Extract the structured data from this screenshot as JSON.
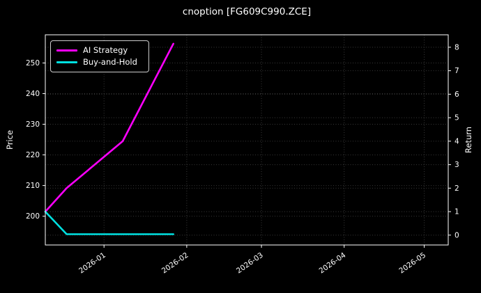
{
  "chart_data": {
    "type": "line",
    "title": "cnoption [FG609C990.ZCE]",
    "theme": {
      "background": "#000000",
      "text": "#ffffff",
      "spine": "#ffffff",
      "grid": "#3a3a3a"
    },
    "x_axis": {
      "tick_labels": [
        "2026-01",
        "2026-02",
        "2026-03",
        "2026-04",
        "2026-05"
      ],
      "tick_dates": [
        "2026-01-01",
        "2026-02-01",
        "2026-03-01",
        "2026-04-01",
        "2026-05-01"
      ],
      "range": [
        "2025-12-10",
        "2026-05-10"
      ],
      "label_rotation_deg": -35
    },
    "left_axis": {
      "label": "Price",
      "ticks": [
        200,
        210,
        220,
        230,
        240,
        250
      ],
      "range": [
        190.6,
        259.2
      ]
    },
    "right_axis": {
      "label": "Return",
      "ticks": [
        0,
        1,
        2,
        3,
        4,
        5,
        6,
        7,
        8
      ],
      "range": [
        -0.42,
        8.53
      ]
    },
    "legend": {
      "location": "upper-left",
      "entries": [
        {
          "label": "AI Strategy",
          "color": "#ff00ff"
        },
        {
          "label": "Buy-and-Hold",
          "color": "#00e0e0"
        }
      ]
    },
    "grid": true,
    "series": [
      {
        "name": "AI Strategy",
        "color": "#ff00ff",
        "axis": "right",
        "x": [
          "2025-12-10",
          "2025-12-18",
          "2026-01-08",
          "2026-01-27"
        ],
        "y": [
          1.0,
          2.0,
          4.0,
          8.15
        ]
      },
      {
        "name": "Buy-and-Hold",
        "color": "#00e0e0",
        "axis": "right",
        "x": [
          "2025-12-10",
          "2025-12-18",
          "2026-01-27"
        ],
        "y": [
          1.0,
          0.04,
          0.04
        ]
      }
    ]
  }
}
